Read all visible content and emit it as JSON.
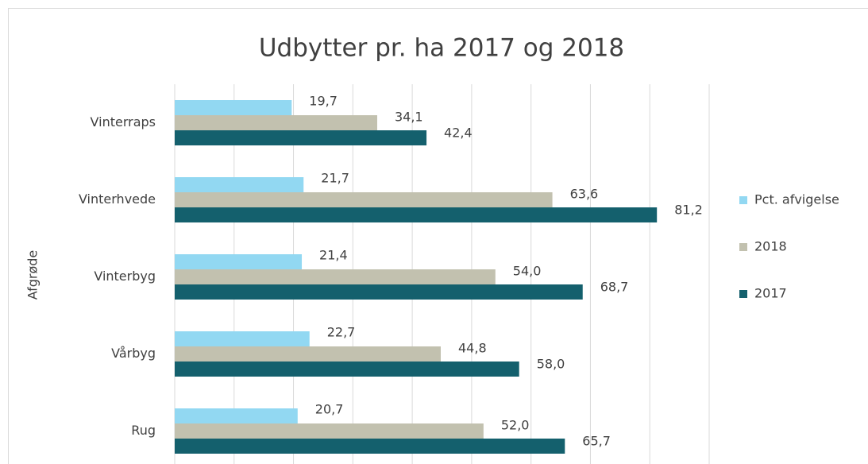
{
  "chart_data": {
    "type": "hbar",
    "title": "Udbytter pr. ha 2017 og 2018",
    "y_label": "Afgrøde",
    "categories": [
      "Vinterraps",
      "Vinterhvede",
      "Vinterbyg",
      "Vårbyg",
      "Rug"
    ],
    "series": [
      {
        "name": "Pct. afvigelse",
        "color": "#92d8f2",
        "values": [
          19.7,
          21.7,
          21.4,
          22.7,
          20.7
        ],
        "value_labels": [
          "19,7",
          "21,7",
          "21,4",
          "22,7",
          "20,7"
        ]
      },
      {
        "name": "2018",
        "color": "#c2c1af",
        "values": [
          34.1,
          63.6,
          54.0,
          44.8,
          52.0
        ],
        "value_labels": [
          "34,1",
          "63,6",
          "54,0",
          "44,8",
          "52,0"
        ]
      },
      {
        "name": "2017",
        "color": "#14606d",
        "values": [
          42.4,
          81.2,
          68.7,
          58.0,
          65.7
        ],
        "value_labels": [
          "42,4",
          "81,2",
          "68,7",
          "58,0",
          "65,7"
        ]
      }
    ],
    "xlim": [
      0,
      90
    ],
    "xticks": [
      0,
      10,
      20,
      30,
      40,
      50,
      60,
      70,
      80,
      90
    ],
    "grid": true,
    "legend": "right"
  }
}
